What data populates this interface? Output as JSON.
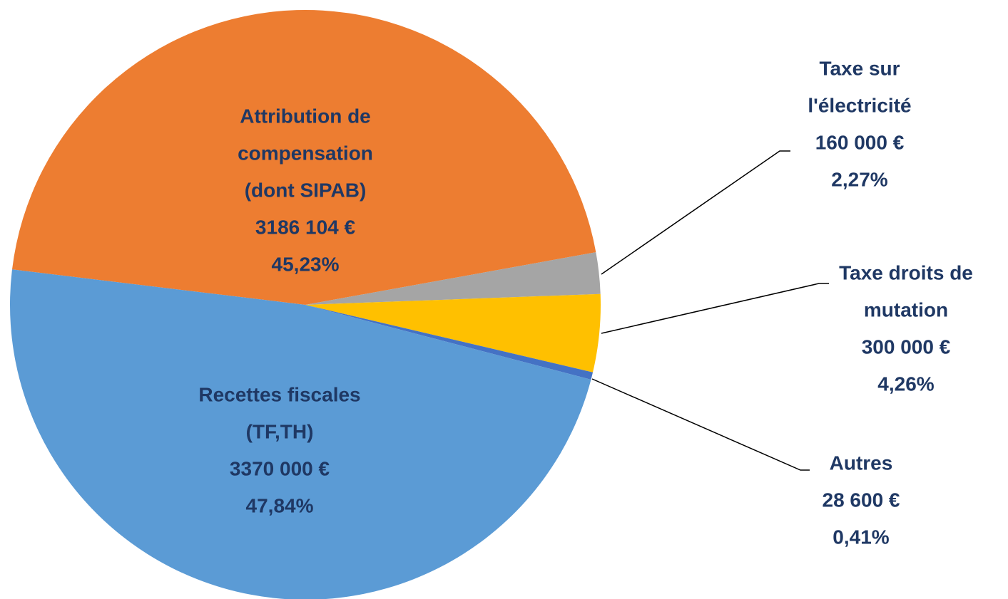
{
  "chart_data": {
    "type": "pie",
    "categories": [
      [
        "Attribution  de",
        "compensation",
        "(dont SIPAB)"
      ],
      [
        "Taxe sur",
        "l'électricité"
      ],
      [
        "Taxe droits de",
        "mutation"
      ],
      [
        "Autres"
      ],
      [
        "Recettes fiscales",
        "(TF,TH)"
      ]
    ],
    "values": [
      3186104,
      160000,
      300000,
      28600,
      3370000
    ],
    "value_labels": [
      "3186 104 €",
      "160 000 €",
      "300 000 €",
      "28 600 €",
      "3370 000 €"
    ],
    "shares": [
      45.23,
      2.27,
      4.26,
      0.41,
      47.84
    ],
    "share_labels": [
      "45,23%",
      "2,27%",
      "4,26%",
      "0,41%",
      "47,84%"
    ],
    "colors": [
      "#ed7d31",
      "#a5a5a5",
      "#ffc000",
      "#4472c4",
      "#5b9bd5"
    ]
  }
}
